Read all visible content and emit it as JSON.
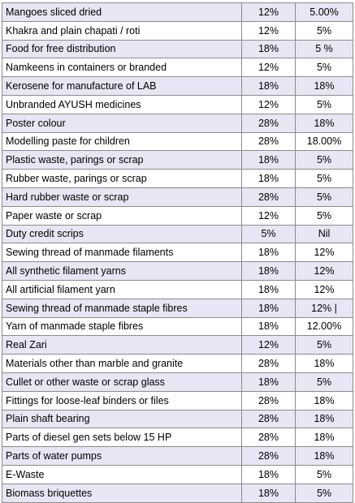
{
  "rows": [
    {
      "item": "Mangoes sliced dried",
      "old": "12%",
      "new": "5.00%"
    },
    {
      "item": "Khakra and plain chapati / roti",
      "old": "12%",
      "new": "5%"
    },
    {
      "item": "Food for free distribution",
      "old": "18%",
      "new": "5 %"
    },
    {
      "item": "Namkeens in containers or branded",
      "old": "12%",
      "new": "5%"
    },
    {
      "item": "Kerosene for manufacture of LAB",
      "old": "18%",
      "new": "18%"
    },
    {
      "item": "Unbranded AYUSH medicines",
      "old": "12%",
      "new": "5%"
    },
    {
      "item": "Poster colour",
      "old": "28%",
      "new": "18%"
    },
    {
      "item": "Modelling paste for children",
      "old": "28%",
      "new": "18.00%"
    },
    {
      "item": "Plastic waste, parings or scrap",
      "old": "18%",
      "new": "5%"
    },
    {
      "item": "Rubber waste, parings or scrap",
      "old": "18%",
      "new": "5%"
    },
    {
      "item": "Hard rubber waste or scrap",
      "old": "28%",
      "new": "5%"
    },
    {
      "item": "Paper waste or scrap",
      "old": "12%",
      "new": "5%"
    },
    {
      "item": "Duty credit scrips",
      "old": "5%",
      "new": "Nil"
    },
    {
      "item": "Sewing thread of manmade filaments",
      "old": "18%",
      "new": "12%"
    },
    {
      "item": "All synthetic filament yarns",
      "old": "18%",
      "new": "12%"
    },
    {
      "item": "All artificial filament yarn",
      "old": "18%",
      "new": "12%"
    },
    {
      "item": "Sewing thread of manmade staple fibres",
      "old": "18%",
      "new": "12% |"
    },
    {
      "item": "Yarn of manmade staple fibres",
      "old": "18%",
      "new": "12.00%"
    },
    {
      "item": "Real Zari",
      "old": "12%",
      "new": "5%"
    },
    {
      "item": "Materials other than marble and granite",
      "old": "28%",
      "new": "18%"
    },
    {
      "item": "Cullet or other waste or scrap glass",
      "old": "18%",
      "new": "5%"
    },
    {
      "item": "Fittings for loose-leaf binders or files",
      "old": "28%",
      "new": "18%"
    },
    {
      "item": "Plain shaft bearing",
      "old": "28%",
      "new": "18%"
    },
    {
      "item": "Parts of diesel gen sets below 15 HP",
      "old": "28%",
      "new": "18%"
    },
    {
      "item": "Parts of water pumps",
      "old": "28%",
      "new": "18%"
    },
    {
      "item": "E-Waste",
      "old": "18%",
      "new": "5%"
    },
    {
      "item": "Biomass briquettes",
      "old": "18%",
      "new": "5%"
    }
  ],
  "colors": {
    "shade": "#e6e6f5",
    "border": "#8c8c8c"
  }
}
